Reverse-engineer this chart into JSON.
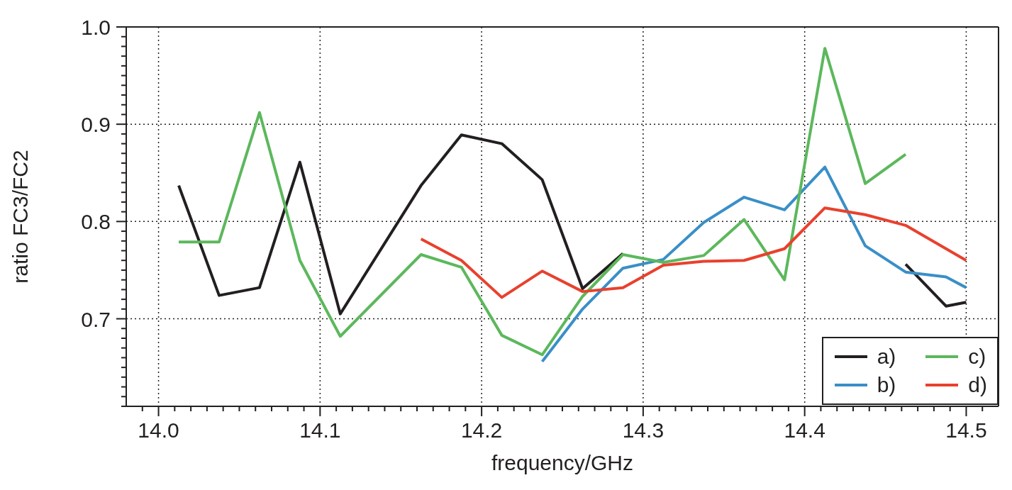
{
  "chart_data": {
    "type": "line",
    "xlabel": "frequency/GHz",
    "ylabel": "ratio FC3/FC2",
    "xlim": [
      13.98,
      14.52
    ],
    "xticks": [
      {
        "value": 13.99,
        "label": null
      },
      {
        "value": 14.0,
        "label": "14.0"
      },
      {
        "value": 14.01,
        "label": null
      },
      {
        "value": 14.02,
        "label": null
      },
      {
        "value": 14.03,
        "label": null
      },
      {
        "value": 14.04,
        "label": null
      },
      {
        "value": 14.05,
        "label": null
      },
      {
        "value": 14.06,
        "label": null
      },
      {
        "value": 14.07,
        "label": null
      },
      {
        "value": 14.08,
        "label": null
      },
      {
        "value": 14.09,
        "label": null
      },
      14.1,
      {
        "value": 14.11,
        "label": null
      },
      {
        "value": 14.12,
        "label": null
      },
      {
        "value": 14.13,
        "label": null
      },
      {
        "value": 14.14,
        "label": null
      },
      {
        "value": 14.15,
        "label": null
      },
      {
        "value": 14.16,
        "label": null
      },
      {
        "value": 14.17,
        "label": null
      },
      {
        "value": 14.18,
        "label": null
      },
      {
        "value": 14.19,
        "label": null
      },
      14.2,
      {
        "value": 14.21,
        "label": null
      },
      {
        "value": 14.22,
        "label": null
      },
      {
        "value": 14.23,
        "label": null
      },
      {
        "value": 14.24,
        "label": null
      },
      {
        "value": 14.25,
        "label": null
      },
      {
        "value": 14.26,
        "label": null
      },
      {
        "value": 14.27,
        "label": null
      },
      {
        "value": 14.28,
        "label": null
      },
      {
        "value": 14.29,
        "label": null
      },
      14.3,
      {
        "value": 14.31,
        "label": null
      },
      {
        "value": 14.32,
        "label": null
      },
      {
        "value": 14.33,
        "label": null
      },
      {
        "value": 14.34,
        "label": null
      },
      {
        "value": 14.35,
        "label": null
      },
      {
        "value": 14.36,
        "label": null
      },
      {
        "value": 14.37,
        "label": null
      },
      {
        "value": 14.38,
        "label": null
      },
      {
        "value": 14.39,
        "label": null
      },
      14.4,
      {
        "value": 14.41,
        "label": null
      },
      {
        "value": 14.42,
        "label": null
      },
      {
        "value": 14.43,
        "label": null
      },
      {
        "value": 14.44,
        "label": null
      },
      {
        "value": 14.45,
        "label": null
      },
      {
        "value": 14.46,
        "label": null
      },
      {
        "value": 14.47,
        "label": null
      },
      {
        "value": 14.48,
        "label": null
      },
      {
        "value": 14.49,
        "label": null
      },
      14.5,
      {
        "value": 14.51,
        "label": null
      }
    ],
    "ylim": [
      0.61,
      1.0
    ],
    "yticks": [
      {
        "value": 0.61,
        "label": null
      },
      {
        "value": 0.62,
        "label": null
      },
      {
        "value": 0.63,
        "label": null
      },
      {
        "value": 0.64,
        "label": null
      },
      {
        "value": 0.65,
        "label": null
      },
      {
        "value": 0.66,
        "label": null
      },
      {
        "value": 0.67,
        "label": null
      },
      {
        "value": 0.68,
        "label": null
      },
      {
        "value": 0.69,
        "label": null
      },
      0.7,
      {
        "value": 0.71,
        "label": null
      },
      {
        "value": 0.72,
        "label": null
      },
      {
        "value": 0.73,
        "label": null
      },
      {
        "value": 0.74,
        "label": null
      },
      {
        "value": 0.75,
        "label": null
      },
      {
        "value": 0.76,
        "label": null
      },
      {
        "value": 0.77,
        "label": null
      },
      {
        "value": 0.78,
        "label": null
      },
      {
        "value": 0.79,
        "label": null
      },
      0.8,
      {
        "value": 0.81,
        "label": null
      },
      {
        "value": 0.82,
        "label": null
      },
      {
        "value": 0.83,
        "label": null
      },
      {
        "value": 0.84,
        "label": null
      },
      {
        "value": 0.85,
        "label": null
      },
      {
        "value": 0.86,
        "label": null
      },
      {
        "value": 0.87,
        "label": null
      },
      {
        "value": 0.88,
        "label": null
      },
      {
        "value": 0.89,
        "label": null
      },
      0.9,
      {
        "value": 0.91,
        "label": null
      },
      {
        "value": 0.92,
        "label": null
      },
      {
        "value": 0.93,
        "label": null
      },
      {
        "value": 0.94,
        "label": null
      },
      {
        "value": 0.95,
        "label": null
      },
      {
        "value": 0.96,
        "label": null
      },
      {
        "value": 0.97,
        "label": null
      },
      {
        "value": 0.98,
        "label": null
      },
      {
        "value": 0.99,
        "label": null
      },
      {
        "value": 1.0,
        "label": "1.0"
      }
    ],
    "grid": true,
    "legend": "bottom right",
    "line_style": "solid",
    "marker": "none",
    "series": [
      {
        "name": "a)",
        "color": "#231f20",
        "x": [
          14.0125,
          14.0375,
          14.0625,
          14.0875,
          14.1125,
          14.1625,
          14.1875,
          14.2125,
          14.2375,
          14.2625,
          14.2875,
          14.3125,
          14.4625,
          14.4875,
          14.5
        ],
        "values": [
          0.837,
          0.724,
          0.732,
          0.861,
          0.705,
          0.837,
          0.889,
          0.88,
          0.843,
          0.731,
          0.767,
          null,
          0.756,
          0.713,
          0.717
        ]
      },
      {
        "name": "b)",
        "color": "#3a8fc7",
        "x": [
          14.2375,
          14.2625,
          14.2875,
          14.3125,
          14.3375,
          14.3625,
          14.3875,
          14.4125,
          14.4375,
          14.4625,
          14.4875,
          14.5
        ],
        "values": [
          0.656,
          0.71,
          0.752,
          0.761,
          0.799,
          0.825,
          0.812,
          0.856,
          0.775,
          0.748,
          0.743,
          0.732
        ]
      },
      {
        "name": "c)",
        "color": "#5cb85c",
        "x": [
          14.0125,
          14.0375,
          14.0625,
          14.0875,
          14.1125,
          14.1625,
          14.1875,
          14.2125,
          14.2375,
          14.2625,
          14.2875,
          14.3125,
          14.3375,
          14.3625,
          14.3875,
          14.4125,
          14.4375,
          14.4625
        ],
        "values": [
          0.779,
          0.779,
          0.912,
          0.76,
          0.682,
          0.766,
          0.753,
          0.683,
          0.663,
          0.723,
          0.766,
          0.758,
          0.765,
          0.802,
          0.74,
          0.978,
          0.839,
          0.869
        ]
      },
      {
        "name": "d)",
        "color": "#e8412d",
        "x": [
          14.1625,
          14.1875,
          14.2125,
          14.2375,
          14.2625,
          14.2875,
          14.3125,
          14.3375,
          14.3625,
          14.3875,
          14.4125,
          14.4375,
          14.4625,
          14.5
        ],
        "values": [
          0.782,
          0.76,
          0.722,
          0.749,
          0.728,
          0.732,
          0.755,
          0.759,
          0.76,
          0.772,
          0.814,
          0.807,
          0.796,
          0.76
        ]
      }
    ]
  }
}
